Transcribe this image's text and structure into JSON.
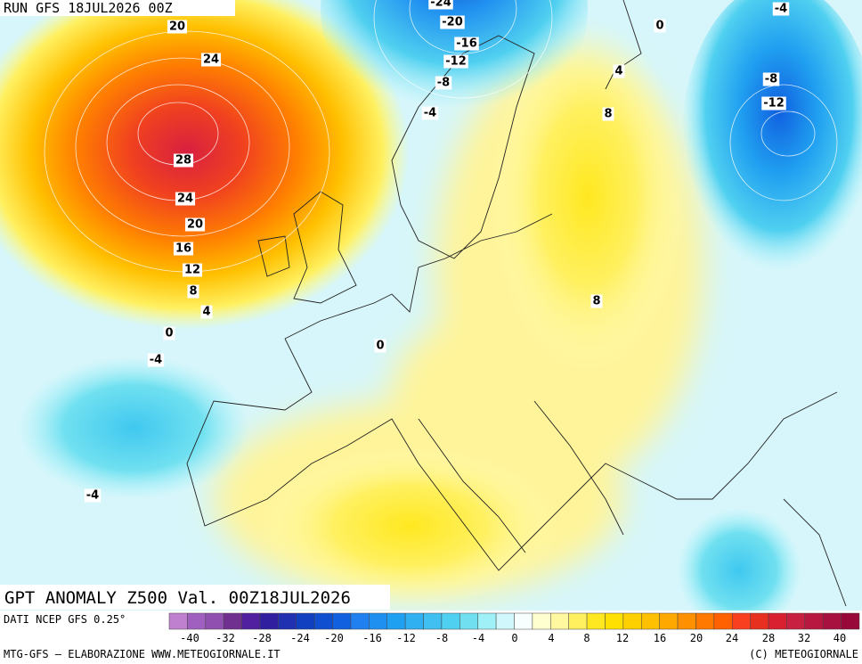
{
  "header": {
    "run": "RUN GFS 18JUL2026 00Z"
  },
  "map": {
    "contour_labels": [
      -24,
      -20,
      -16,
      -12,
      -8,
      -4,
      0,
      -4,
      4,
      8,
      -8,
      -12,
      20,
      24,
      28,
      24,
      20,
      16,
      12,
      8,
      4,
      0,
      -4,
      0,
      8,
      -4
    ]
  },
  "title": "GPT ANOMALY Z500 Val. 00Z18JUL2026",
  "source": "DATI NCEP GFS 0.25°",
  "colorbar": {
    "colors": [
      "#c080d0",
      "#a060c0",
      "#9050b0",
      "#703090",
      "#5020a0",
      "#3020a0",
      "#2030b0",
      "#1040c0",
      "#1050d0",
      "#1060e0",
      "#2080f0",
      "#2090f0",
      "#20a0f0",
      "#30b0f0",
      "#40c0f0",
      "#50d0f0",
      "#70e0f0",
      "#a0f0f8",
      "#d0f8fc",
      "#f8ffff",
      "#ffffd0",
      "#fff8a0",
      "#fff060",
      "#ffe820",
      "#ffe000",
      "#ffd000",
      "#ffc000",
      "#ffa800",
      "#ff9000",
      "#ff7800",
      "#ff6000",
      "#f84020",
      "#e83020",
      "#d82030",
      "#c82040",
      "#b81840",
      "#a81040",
      "#980838"
    ],
    "labels": [
      -40,
      -32,
      -28,
      -24,
      -20,
      -16,
      -12,
      -8,
      -4,
      0,
      4,
      8,
      12,
      16,
      20,
      24,
      28,
      32,
      40
    ]
  },
  "footer": {
    "left": "MTG-GFS — ELABORAZIONE WWW.METEOGIORNALE.IT",
    "right": "(C) METEOGIORNALE"
  }
}
